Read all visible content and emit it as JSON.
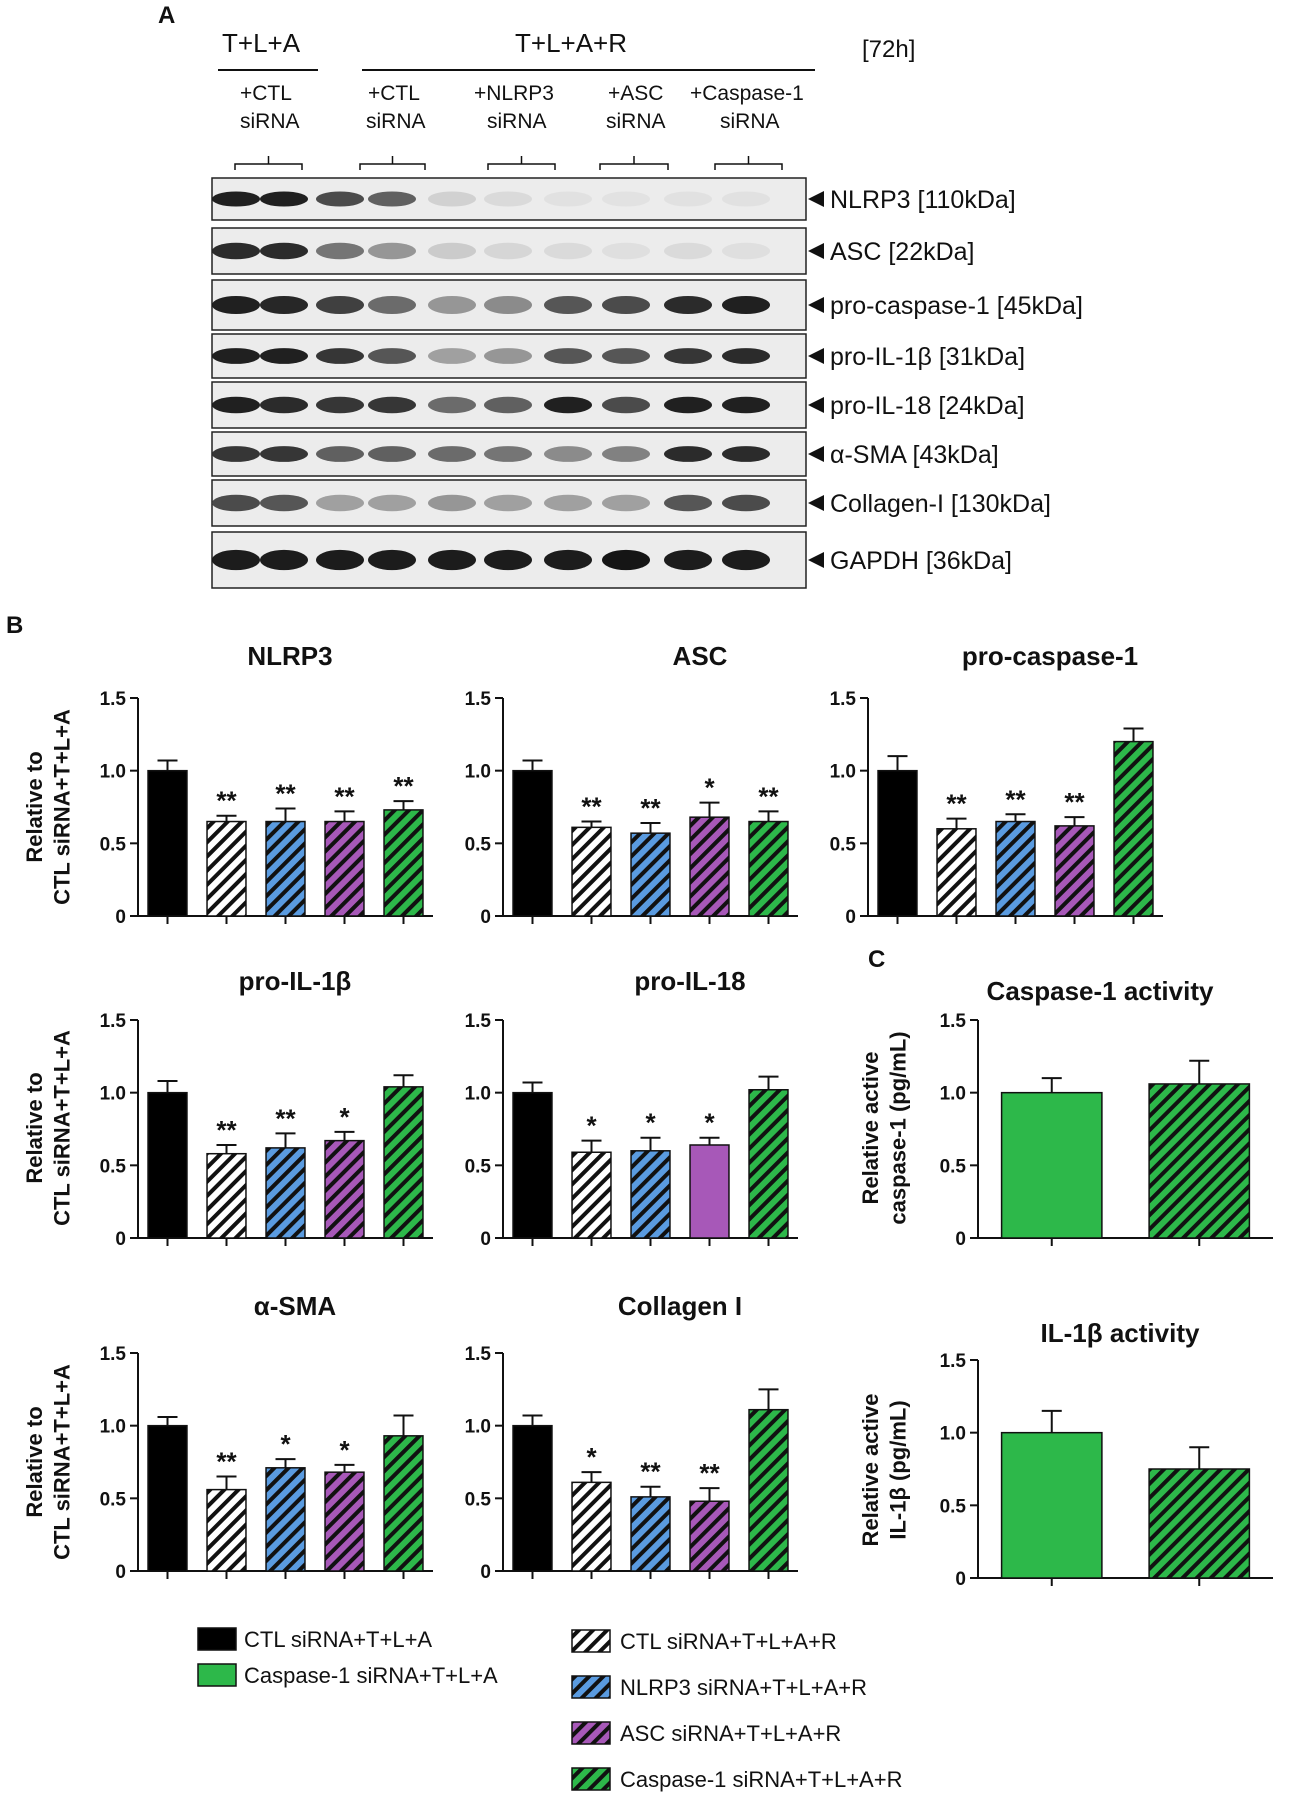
{
  "figure": {
    "panel_labels": [
      "A",
      "B",
      "C"
    ]
  },
  "blot": {
    "group_headers": [
      "T+L+A",
      "T+L+A+R"
    ],
    "time_label": "[72h]",
    "lanes": [
      {
        "top": "+CTL",
        "bottom": "siRNA"
      },
      {
        "top": "+CTL",
        "bottom": "siRNA"
      },
      {
        "top": "+NLRP3",
        "bottom": "siRNA"
      },
      {
        "top": "+ASC",
        "bottom": "siRNA"
      },
      {
        "top": "+Caspase-1",
        "bottom": "siRNA"
      }
    ],
    "strips": [
      {
        "label": "NLRP3 [110kDa]",
        "intensity": [
          0.95,
          0.95,
          0.75,
          0.65,
          0.12,
          0.08,
          0.05,
          0.04,
          0.05,
          0.05
        ]
      },
      {
        "label": "ASC [22kDa]",
        "intensity": [
          0.9,
          0.9,
          0.55,
          0.4,
          0.15,
          0.1,
          0.08,
          0.06,
          0.08,
          0.06
        ]
      },
      {
        "label": "pro-caspase-1 [45kDa]",
        "intensity": [
          0.95,
          0.92,
          0.8,
          0.6,
          0.4,
          0.45,
          0.7,
          0.75,
          0.9,
          0.95
        ]
      },
      {
        "label": "pro-IL-1β [31kDa]",
        "intensity": [
          0.95,
          0.95,
          0.85,
          0.7,
          0.35,
          0.4,
          0.7,
          0.7,
          0.85,
          0.9
        ]
      },
      {
        "label": "pro-IL-18 [24kDa]",
        "intensity": [
          0.95,
          0.9,
          0.85,
          0.85,
          0.6,
          0.65,
          0.95,
          0.75,
          0.95,
          0.95
        ]
      },
      {
        "label": "α-SMA [43kDa]",
        "intensity": [
          0.85,
          0.85,
          0.65,
          0.65,
          0.6,
          0.55,
          0.45,
          0.5,
          0.9,
          0.9
        ]
      },
      {
        "label": "Collagen-I  [130kDa]",
        "intensity": [
          0.75,
          0.7,
          0.35,
          0.35,
          0.4,
          0.35,
          0.35,
          0.35,
          0.7,
          0.75
        ]
      },
      {
        "label": "GAPDH [36kDa]",
        "intensity": [
          0.97,
          0.97,
          0.97,
          0.97,
          0.97,
          0.97,
          0.97,
          1.0,
          0.97,
          0.97
        ]
      }
    ]
  },
  "legend": {
    "left": [
      {
        "label": "CTL siRNA+T+L+A",
        "color": "#000000",
        "pattern": "solid"
      },
      {
        "label": "Caspase-1 siRNA+T+L+A",
        "color": "#2db84a",
        "pattern": "solid"
      }
    ],
    "right": [
      {
        "label": "CTL siRNA+T+L+A+R",
        "color": "#ffffff",
        "pattern": "hatch"
      },
      {
        "label": "NLRP3  siRNA+T+L+A+R",
        "color": "#5a9be0",
        "pattern": "hatch"
      },
      {
        "label": "ASC siRNA+T+L+A+R",
        "color": "#a758b8",
        "pattern": "hatch"
      },
      {
        "label": "Caspase-1 siRNA+T+L+A+R",
        "color": "#2db84a",
        "pattern": "hatch"
      }
    ]
  },
  "chart_data": [
    {
      "type": "bar",
      "title": "NLRP3",
      "ylabel": "Relative to\nCTL siRNA+T+L+A",
      "ylim": [
        0,
        1.5
      ],
      "yticks": [
        "0",
        "0.5",
        "1.0",
        "1.5"
      ],
      "values": [
        1.0,
        0.65,
        0.65,
        0.65,
        0.73
      ],
      "errors": [
        0.07,
        0.04,
        0.09,
        0.07,
        0.06
      ],
      "annotations": [
        "",
        "**",
        "**",
        "**",
        "**"
      ],
      "colors": [
        "#000000",
        "#ffffff",
        "#5a9be0",
        "#a758b8",
        "#2db84a"
      ],
      "patterns": [
        "solid",
        "hatch",
        "hatch",
        "hatch",
        "hatch"
      ]
    },
    {
      "type": "bar",
      "title": "ASC",
      "ylabel": "",
      "ylim": [
        0,
        1.5
      ],
      "yticks": [
        "0",
        "0.5",
        "1.0",
        "1.5"
      ],
      "values": [
        1.0,
        0.61,
        0.57,
        0.68,
        0.65
      ],
      "errors": [
        0.07,
        0.04,
        0.07,
        0.1,
        0.07
      ],
      "annotations": [
        "",
        "**",
        "**",
        "*",
        "**"
      ],
      "colors": [
        "#000000",
        "#ffffff",
        "#5a9be0",
        "#a758b8",
        "#2db84a"
      ],
      "patterns": [
        "solid",
        "hatch",
        "hatch",
        "hatch",
        "hatch"
      ]
    },
    {
      "type": "bar",
      "title": "pro-caspase-1",
      "ylabel": "",
      "ylim": [
        0,
        1.5
      ],
      "yticks": [
        "0",
        "0.5",
        "1.0",
        "1.5"
      ],
      "values": [
        1.0,
        0.6,
        0.65,
        0.62,
        1.2
      ],
      "errors": [
        0.1,
        0.07,
        0.05,
        0.06,
        0.09
      ],
      "annotations": [
        "",
        "**",
        "**",
        "**",
        ""
      ],
      "colors": [
        "#000000",
        "#ffffff",
        "#5a9be0",
        "#a758b8",
        "#2db84a"
      ],
      "patterns": [
        "solid",
        "hatch",
        "hatch",
        "hatch",
        "hatch"
      ]
    },
    {
      "type": "bar",
      "title": "pro-IL-1β",
      "ylabel": "Relative to\nCTL siRNA+T+L+A",
      "ylim": [
        0,
        1.5
      ],
      "yticks": [
        "0",
        "0.5",
        "1.0",
        "1.5"
      ],
      "values": [
        1.0,
        0.58,
        0.62,
        0.67,
        1.04
      ],
      "errors": [
        0.08,
        0.06,
        0.1,
        0.06,
        0.08
      ],
      "annotations": [
        "",
        "**",
        "**",
        "*",
        ""
      ],
      "colors": [
        "#000000",
        "#ffffff",
        "#5a9be0",
        "#a758b8",
        "#2db84a"
      ],
      "patterns": [
        "solid",
        "hatch",
        "hatch",
        "hatch",
        "hatch"
      ]
    },
    {
      "type": "bar",
      "title": "pro-IL-18",
      "ylabel": "",
      "ylim": [
        0,
        1.5
      ],
      "yticks": [
        "0",
        "0.5",
        "1.0",
        "1.5"
      ],
      "values": [
        1.0,
        0.59,
        0.6,
        0.64,
        1.02
      ],
      "errors": [
        0.07,
        0.08,
        0.09,
        0.05,
        0.09
      ],
      "annotations": [
        "",
        "*",
        "*",
        "*",
        ""
      ],
      "colors": [
        "#000000",
        "#ffffff",
        "#5a9be0",
        "#a758b8",
        "#2db84a"
      ],
      "patterns": [
        "solid",
        "hatch",
        "hatch",
        "solid",
        "hatch"
      ]
    },
    {
      "type": "bar",
      "title": "Caspase-1  activity",
      "ylabel": "Relative active\ncaspase-1 (pg/mL)",
      "ylim": [
        0,
        1.5
      ],
      "yticks": [
        "0",
        "0.5",
        "1.0",
        "1.5"
      ],
      "values": [
        1.0,
        1.06
      ],
      "errors": [
        0.1,
        0.16
      ],
      "annotations": [
        "",
        ""
      ],
      "colors": [
        "#2db84a",
        "#2db84a"
      ],
      "patterns": [
        "solid",
        "hatch"
      ]
    },
    {
      "type": "bar",
      "title": "α-SMA",
      "ylabel": "Relative to\nCTL siRNA+T+L+A",
      "ylim": [
        0,
        1.5
      ],
      "yticks": [
        "0",
        "0.5",
        "1.0",
        "1.5"
      ],
      "values": [
        1.0,
        0.56,
        0.71,
        0.68,
        0.93
      ],
      "errors": [
        0.06,
        0.09,
        0.06,
        0.05,
        0.14
      ],
      "annotations": [
        "",
        "**",
        "*",
        "*",
        ""
      ],
      "colors": [
        "#000000",
        "#ffffff",
        "#5a9be0",
        "#a758b8",
        "#2db84a"
      ],
      "patterns": [
        "solid",
        "hatch",
        "hatch",
        "hatch",
        "hatch"
      ]
    },
    {
      "type": "bar",
      "title": "Collagen  I",
      "ylabel": "",
      "ylim": [
        0,
        1.5
      ],
      "yticks": [
        "0",
        "0.5",
        "1.0",
        "1.5"
      ],
      "values": [
        1.0,
        0.61,
        0.51,
        0.48,
        1.11
      ],
      "errors": [
        0.07,
        0.07,
        0.07,
        0.09,
        0.14
      ],
      "annotations": [
        "",
        "*",
        "**",
        "**",
        ""
      ],
      "colors": [
        "#000000",
        "#ffffff",
        "#5a9be0",
        "#a758b8",
        "#2db84a"
      ],
      "patterns": [
        "solid",
        "hatch",
        "hatch",
        "hatch",
        "hatch"
      ]
    },
    {
      "type": "bar",
      "title": "IL-1β activity",
      "ylabel": "Relative active\nIL-1β (pg/mL)",
      "ylim": [
        0,
        1.5
      ],
      "yticks": [
        "0",
        "0.5",
        "1.0",
        "1.5"
      ],
      "values": [
        1.0,
        0.75
      ],
      "errors": [
        0.15,
        0.15
      ],
      "annotations": [
        "",
        ""
      ],
      "colors": [
        "#2db84a",
        "#2db84a"
      ],
      "patterns": [
        "solid",
        "hatch"
      ]
    }
  ]
}
